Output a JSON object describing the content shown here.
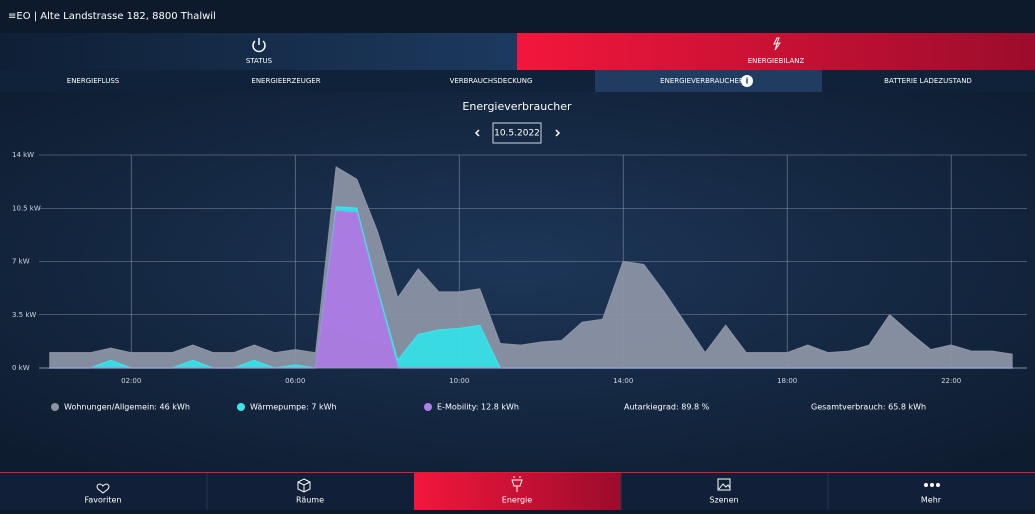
{
  "header": {
    "title": "≡EO | Alte Landstrasse 182, 8800 Thalwil"
  },
  "main_tabs": [
    {
      "label": "STATUS"
    },
    {
      "label": "ENERGIEBILANZ"
    }
  ],
  "sub_tabs": [
    {
      "label": "ENERGIEFLUSS"
    },
    {
      "label": "ENERGIEERZEUGER"
    },
    {
      "label": "VERBRAUCHSDECKUNG"
    },
    {
      "label": "ENERGIEVERBRAUCHER"
    },
    {
      "label": "BATTERIE LADEZUSTAND"
    }
  ],
  "date": "10.5.2022",
  "chart_data": {
    "type": "area",
    "stacked": true,
    "title": "Energieverbraucher",
    "x": [
      0,
      0.5,
      1,
      1.5,
      2,
      2.5,
      3,
      3.5,
      4,
      4.5,
      5,
      5.5,
      6,
      6.5,
      7,
      7.5,
      8,
      8.5,
      9,
      9.5,
      10,
      10.5,
      11,
      11.5,
      12,
      12.5,
      13,
      13.5,
      14,
      14.5,
      15,
      15.5,
      16,
      16.5,
      17,
      17.5,
      18,
      18.5,
      19,
      19.5,
      20,
      20.5,
      21,
      21.5,
      22,
      22.5,
      23,
      23.5
    ],
    "series": [
      {
        "name": "Wohnungen/Allgemein: 46 kWh",
        "color": "#8b94a4",
        "values": [
          1.0,
          1.0,
          1.0,
          0.8,
          1.0,
          1.0,
          1.0,
          1.0,
          1.0,
          1.0,
          1.0,
          1.0,
          1.0,
          1.0,
          2.6,
          1.9,
          3.7,
          4.1,
          4.3,
          2.5,
          2.4,
          2.4,
          1.6,
          1.5,
          1.7,
          1.8,
          3.0,
          3.2,
          7.0,
          6.8,
          5.0,
          3.0,
          1.0,
          2.8,
          1.0,
          1.0,
          1.0,
          1.5,
          1.0,
          1.1,
          1.5,
          3.5,
          2.3,
          1.2,
          1.5,
          1.1,
          1.1,
          0.9
        ]
      },
      {
        "name": "Wärmepumpe: 7 kWh",
        "color": "#3ce4ea",
        "values": [
          0,
          0,
          0,
          0.5,
          0,
          0,
          0,
          0.5,
          0,
          0,
          0.5,
          0,
          0.2,
          0,
          0.3,
          0.3,
          0.3,
          0.5,
          2.2,
          2.5,
          2.6,
          2.8,
          0,
          0,
          0,
          0,
          0,
          0,
          0,
          0,
          0,
          0,
          0,
          0,
          0,
          0,
          0,
          0,
          0,
          0,
          0,
          0,
          0,
          0,
          0,
          0,
          0,
          0
        ]
      },
      {
        "name": "E-Mobility: 12.8 kWh",
        "color": "#b27fe8",
        "values": [
          0,
          0,
          0,
          0,
          0,
          0,
          0,
          0,
          0,
          0,
          0,
          0,
          0,
          0,
          10.3,
          10.2,
          5.0,
          0,
          0,
          0,
          0,
          0,
          0,
          0,
          0,
          0,
          0,
          0,
          0,
          0,
          0,
          0,
          0,
          0,
          0,
          0,
          0,
          0,
          0,
          0,
          0,
          0,
          0,
          0,
          0,
          0,
          0,
          0
        ]
      }
    ],
    "xlim": [
      -0.25,
      23.85
    ],
    "xticks": [
      {
        "value": 2,
        "label": "02:00"
      },
      {
        "value": 6,
        "label": "06:00"
      },
      {
        "value": 10,
        "label": "10:00"
      },
      {
        "value": 14,
        "label": "14:00"
      },
      {
        "value": 18,
        "label": "18:00"
      },
      {
        "value": 22,
        "label": "22:00"
      }
    ],
    "ylim": [
      0,
      14
    ],
    "yticks": [
      {
        "value": 0,
        "label": "0 kW"
      },
      {
        "value": 3.5,
        "label": "3.5 kW"
      },
      {
        "value": 7,
        "label": "7 kW"
      },
      {
        "value": 10.5,
        "label": "10.5 kW"
      },
      {
        "value": 14,
        "label": "14 kW"
      }
    ],
    "grid": true
  },
  "stats": [
    {
      "label": "Autarkiegrad: 89.8 %"
    },
    {
      "label": "Gesamtverbrauch: 65.8 kWh"
    }
  ],
  "nav": [
    {
      "label": "Favoriten"
    },
    {
      "label": "Räume"
    },
    {
      "label": "Energie"
    },
    {
      "label": "Szenen"
    },
    {
      "label": "Mehr"
    }
  ]
}
